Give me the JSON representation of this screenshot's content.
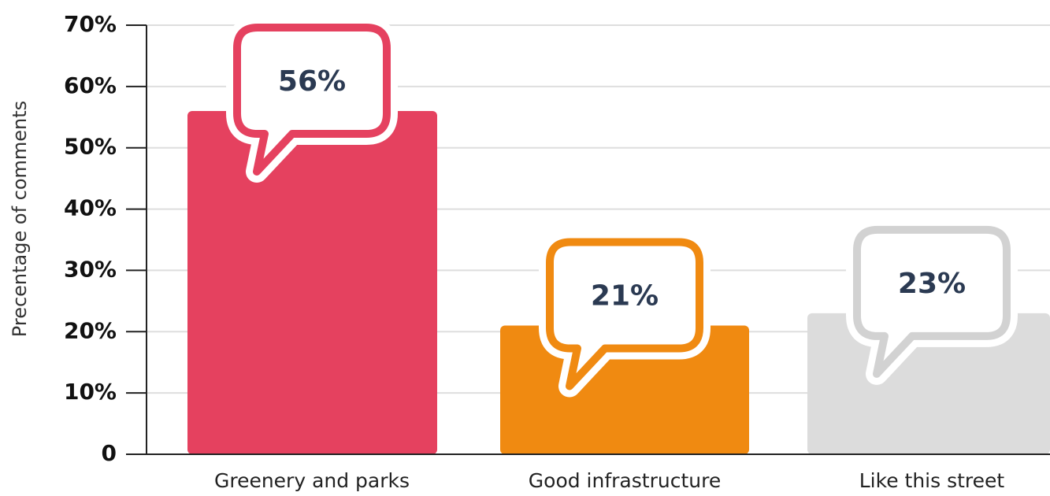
{
  "chart_data": {
    "type": "bar",
    "y_label": "Precentage of comments",
    "categories": [
      "Greenery and parks",
      "Good infrastructure",
      "Like this street"
    ],
    "values": [
      56,
      21,
      23
    ],
    "value_labels": [
      "56%",
      "21%",
      "23%"
    ],
    "colors": [
      "#e5415f",
      "#f08a11",
      "#dcdcdc"
    ],
    "ylim": [
      0,
      70
    ],
    "yticks": [
      0,
      {
        "value": 10,
        "label": "10%"
      },
      {
        "value": 20,
        "label": "20%"
      },
      {
        "value": 30,
        "label": "30%"
      },
      {
        "value": 40,
        "label": "40%"
      },
      {
        "value": 50,
        "label": "50%"
      },
      {
        "value": 60,
        "label": "60%"
      },
      {
        "value": 70,
        "label": "70%"
      }
    ],
    "grid": true
  }
}
